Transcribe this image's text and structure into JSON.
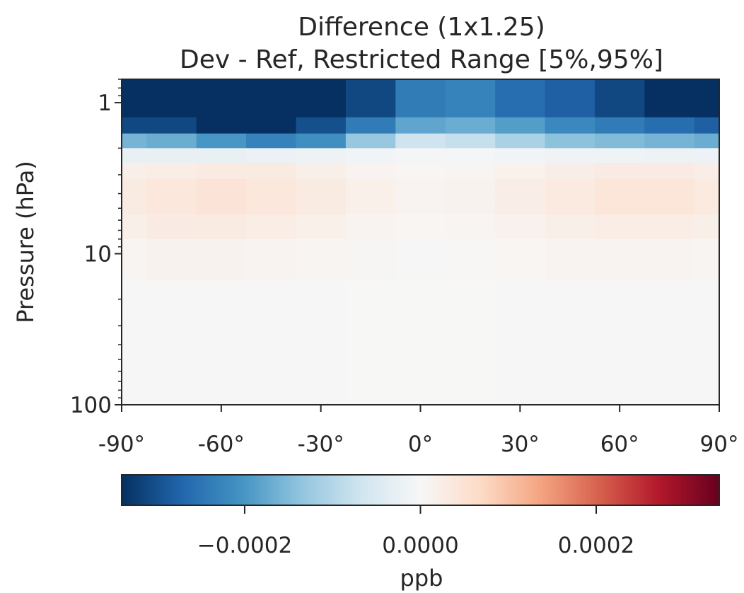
{
  "chart_data": {
    "type": "heatmap",
    "title": "Difference (1x1.25)",
    "subtitle": "Dev - Ref, Restricted Range [5%,95%]",
    "xlabel": "",
    "ylabel": "Pressure (hPa)",
    "x_range": [
      -90,
      90
    ],
    "y_range": [
      100,
      0.7
    ],
    "y_scale": "log",
    "x_ticks": [
      -90,
      -60,
      -30,
      0,
      30,
      60,
      90
    ],
    "x_tick_labels": [
      "-90°",
      "-60°",
      "-30°",
      "0°",
      "30°",
      "60°",
      "90°"
    ],
    "y_ticks": [
      1,
      10,
      100
    ],
    "y_tick_labels": [
      "1",
      "10",
      "100"
    ],
    "colormap": "RdBu_r",
    "colorbar": {
      "label": "ppb",
      "range": [
        -0.00034,
        0.00034
      ],
      "ticks": [
        -0.0002,
        0.0,
        0.0002
      ],
      "tick_labels": [
        "−0.0002",
        "0.0000",
        "0.0002"
      ],
      "orientation": "horizontal",
      "placement": "bottom"
    },
    "x": [
      -90,
      -75,
      -60,
      -45,
      -30,
      -15,
      0,
      15,
      30,
      45,
      60,
      75,
      90
    ],
    "levels": [
      {
        "p_top": 0.7,
        "p_bottom": 1.25,
        "values": [
          -0.00034,
          -0.00034,
          -0.00034,
          -0.00034,
          -0.00034,
          -0.00031,
          -0.00024,
          -0.00023,
          -0.00026,
          -0.00028,
          -0.00031,
          -0.00034,
          -0.00034
        ]
      },
      {
        "p_top": 1.25,
        "p_bottom": 1.6,
        "values": [
          -0.00031,
          -0.00031,
          -0.00034,
          -0.00034,
          -0.0003,
          -0.00024,
          -0.00018,
          -0.00017,
          -0.00019,
          -0.00022,
          -0.00024,
          -0.00026,
          -0.00028
        ]
      },
      {
        "p_top": 1.6,
        "p_bottom": 2.0,
        "values": [
          -0.00016,
          -0.00017,
          -0.0002,
          -0.00023,
          -0.00021,
          -0.00013,
          -7e-05,
          -8e-05,
          -0.00011,
          -0.00014,
          -0.00015,
          -0.00016,
          -0.00017
        ]
      },
      {
        "p_top": 2.0,
        "p_bottom": 2.5,
        "values": [
          -2.5e-05,
          -2.5e-05,
          -2.5e-05,
          -2.2e-05,
          -1.8e-05,
          -1.2e-05,
          -6e-06,
          -6e-06,
          -1e-05,
          -1.4e-05,
          -1.6e-05,
          -1.8e-05,
          -2e-05
        ]
      },
      {
        "p_top": 2.5,
        "p_bottom": 3.2,
        "values": [
          2e-05,
          2.5e-05,
          3e-05,
          3e-05,
          2e-05,
          1e-05,
          6e-06,
          8e-06,
          1.5e-05,
          2.2e-05,
          2.8e-05,
          2.8e-05,
          2.2e-05
        ]
      },
      {
        "p_top": 3.2,
        "p_bottom": 4.0,
        "values": [
          3e-05,
          4e-05,
          4.5e-05,
          4e-05,
          3e-05,
          1.8e-05,
          1e-05,
          1.2e-05,
          2.2e-05,
          3.2e-05,
          4.2e-05,
          4.2e-05,
          3.2e-05
        ]
      },
      {
        "p_top": 4.0,
        "p_bottom": 5.5,
        "values": [
          3e-05,
          4e-05,
          4.5e-05,
          4e-05,
          3e-05,
          1.8e-05,
          1e-05,
          1.2e-05,
          2.2e-05,
          3.2e-05,
          4.2e-05,
          4.2e-05,
          3.2e-05
        ]
      },
      {
        "p_top": 5.5,
        "p_bottom": 8.0,
        "values": [
          2e-05,
          2.8e-05,
          3e-05,
          2.5e-05,
          1.8e-05,
          1e-05,
          6e-06,
          8e-06,
          1.4e-05,
          2e-05,
          2.5e-05,
          2.5e-05,
          2e-05
        ]
      },
      {
        "p_top": 8.0,
        "p_bottom": 15.0,
        "values": [
          8e-06,
          1.2e-05,
          1.2e-05,
          1e-05,
          7e-06,
          4e-06,
          2e-06,
          3e-06,
          6e-06,
          9e-06,
          1e-05,
          1e-05,
          8e-06
        ]
      },
      {
        "p_top": 15.0,
        "p_bottom": 100.0,
        "values": [
          2e-06,
          2e-06,
          2e-06,
          2e-06,
          2e-06,
          1e-06,
          1e-06,
          1e-06,
          2e-06,
          2e-06,
          2e-06,
          2e-06,
          2e-06
        ]
      }
    ]
  }
}
